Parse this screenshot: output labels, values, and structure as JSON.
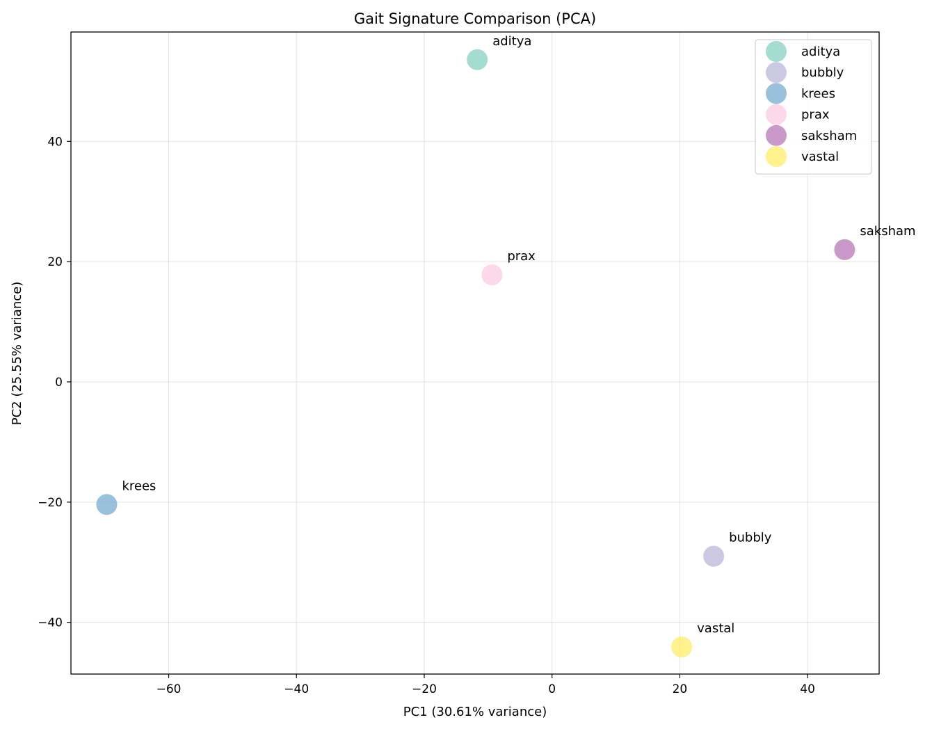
{
  "chart_data": {
    "type": "scatter",
    "title": "Gait Signature Comparison (PCA)",
    "xlabel": "PC1 (30.61% variance)",
    "ylabel": "PC2 (25.55% variance)",
    "xlim": [
      -75.3,
      51.2
    ],
    "ylim": [
      -48.6,
      58.2
    ],
    "xticks": [
      -60,
      -40,
      -20,
      0,
      20,
      40
    ],
    "yticks": [
      -40,
      -20,
      0,
      20,
      40
    ],
    "xtick_labels": [
      "−60",
      "−40",
      "−20",
      "0",
      "20",
      "40"
    ],
    "ytick_labels": [
      "−40",
      "−20",
      "0",
      "20",
      "40"
    ],
    "grid": true,
    "legend_position": "top-right",
    "series": [
      {
        "name": "aditya",
        "color": "#8dd3c7",
        "x": -11.7,
        "y": 53.6
      },
      {
        "name": "bubbly",
        "color": "#bebada",
        "x": 25.3,
        "y": -29.0
      },
      {
        "name": "krees",
        "color": "#80b1d3",
        "x": -69.7,
        "y": -20.4
      },
      {
        "name": "prax",
        "color": "#fccde5",
        "x": -9.4,
        "y": 17.8
      },
      {
        "name": "saksham",
        "color": "#bc80bd",
        "x": 45.8,
        "y": 22.0
      },
      {
        "name": "vastal",
        "color": "#ffed6f",
        "x": 20.3,
        "y": -44.1
      }
    ]
  }
}
